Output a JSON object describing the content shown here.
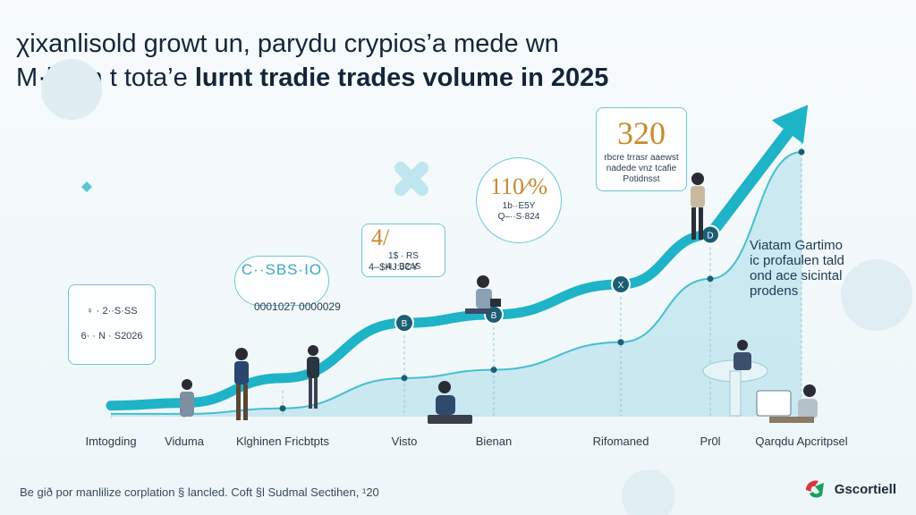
{
  "title": {
    "line1": "χixanlisold growt un, parydu crypios’a mede wn",
    "line2_a": "M·llprm t tota’e ",
    "line2_b": "lurnt tradie trades volume in 2025"
  },
  "callouts": [
    {
      "big": "320",
      "lines": [
        "rbcre trrasr aaewst",
        "nadede vnz tcafie",
        "Potidnsst"
      ]
    },
    {
      "big": "110⁄%",
      "lines": [
        "1b··E5Y",
        "Q–··S·824"
      ]
    },
    {
      "big": "4/",
      "lines": [
        "1$ · RS",
        "4 · B24S"
      ],
      "foot": "4–$HJ:JCY"
    },
    {
      "big": "",
      "lines": [
        "C··SBS·IO"
      ],
      "foot": "0001027 0000029"
    },
    {
      "big": "",
      "lines": [
        "♀ · 2··S·SS",
        "6· · N · S2026"
      ]
    }
  ],
  "categories": [
    "Imtogding",
    "Viduma",
    "Klghinen Fricbtpts",
    "Visto",
    "Bienan",
    "Rifomaned",
    "Pr0l",
    "Qarqdu Apcritpsel"
  ],
  "side_note": [
    "Viatam Gartimo",
    "ic profaulen tald",
    "ond ace sicintal",
    "prodens"
  ],
  "footer": "Be gið por manlilize corplation § lancled. Coft §l Sudmal Sectihen, ¹20",
  "logo": "Gscortiell",
  "chart_data": {
    "type": "line",
    "title": "χixanlisold growt un, parydu crypios’a mede wn M·llprm t tota’e lurnt tradie trades volume in 2025",
    "categories": [
      "Imtogding",
      "Viduma",
      "Klghinen Fricbtpts",
      "Visto",
      "Bienan",
      "Rifomaned",
      "Pr0l",
      "Qarqdu Apcritpsel"
    ],
    "series": [
      {
        "values": [
          4,
          5,
          14,
          34,
          37,
          48,
          66,
          110
        ]
      },
      {
        "values": [
          1,
          1,
          3,
          14,
          17,
          27,
          50,
          96
        ]
      }
    ],
    "ylim": [
      0,
      120
    ],
    "markers": [
      {
        "category_index": 3,
        "label": "B"
      },
      {
        "category_index": 4,
        "label": "B"
      },
      {
        "category_index": 5,
        "label": "X"
      },
      {
        "category_index": 6,
        "label": "D"
      }
    ],
    "grid": false,
    "colors": {
      "main": "#1fb3c7",
      "area": "#a9dde7",
      "accent": "#c98a2e",
      "marker": "#1b5f76"
    }
  }
}
